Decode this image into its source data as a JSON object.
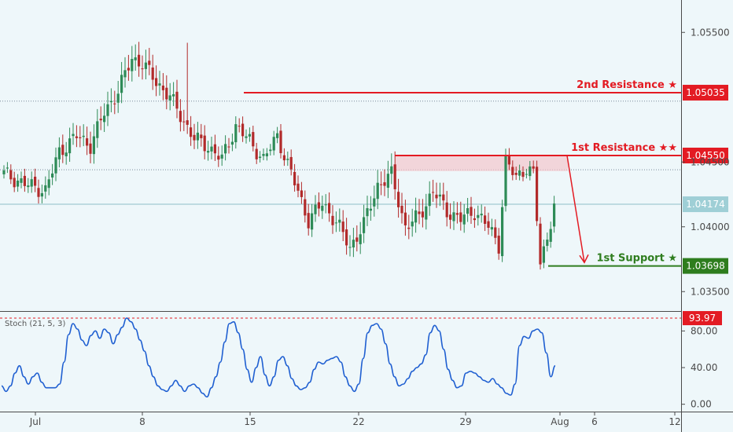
{
  "colors": {
    "background": "#eef7fa",
    "up_candle": "#2e8b57",
    "down_candle": "#b22a2a",
    "resistance": "#e31b23",
    "support": "#2e7d1e",
    "zone_fill": "#f3c6cc",
    "stoch_line": "#1f5fd1",
    "current_tag": "#9fcfd6",
    "axis_text": "#4a4a4a"
  },
  "chart_data": [
    {
      "type": "candlestick",
      "title": "",
      "y_axis_side": "right",
      "ylim": [
        1.0335,
        1.0575
      ],
      "y_ticks": [
        "1.05500",
        "1.04500",
        "1.04000",
        "1.03500"
      ],
      "x_ticks": [
        "Jul",
        "8",
        "15",
        "22",
        "29",
        "Aug",
        "6",
        "12"
      ],
      "price_anchors": [
        [
          0,
          1.0441
        ],
        [
          6,
          1.0433
        ],
        [
          12,
          1.0428
        ],
        [
          16,
          1.0458
        ],
        [
          21,
          1.047
        ],
        [
          25,
          1.0463
        ],
        [
          29,
          1.0488
        ],
        [
          33,
          1.0505
        ],
        [
          37,
          1.053
        ],
        [
          40,
          1.0526
        ],
        [
          44,
          1.0512
        ],
        [
          48,
          1.05
        ],
        [
          51,
          1.0486
        ],
        [
          55,
          1.0468
        ],
        [
          59,
          1.0462
        ],
        [
          63,
          1.0452
        ],
        [
          67,
          1.0478
        ],
        [
          71,
          1.0466
        ],
        [
          75,
          1.0452
        ],
        [
          79,
          1.047
        ],
        [
          84,
          1.0434
        ],
        [
          88,
          1.0405
        ],
        [
          92,
          1.0418
        ],
        [
          96,
          1.0404
        ],
        [
          100,
          1.0384
        ],
        [
          104,
          1.0402
        ],
        [
          108,
          1.0432
        ],
        [
          112,
          1.044
        ],
        [
          116,
          1.04
        ],
        [
          120,
          1.0408
        ],
        [
          124,
          1.0428
        ],
        [
          128,
          1.0412
        ],
        [
          132,
          1.0406
        ],
        [
          136,
          1.0412
        ],
        [
          140,
          1.04
        ],
        [
          143,
          1.0386
        ],
        [
          145,
          1.045
        ],
        [
          148,
          1.0438
        ],
        [
          151,
          1.0446
        ],
        [
          153,
          1.044
        ],
        [
          155,
          1.0372
        ],
        [
          157,
          1.0392
        ],
        [
          159,
          1.0417
        ]
      ],
      "levels": [
        {
          "label": "2nd Resistance ★",
          "value": 1.05035,
          "tag": "1.05035",
          "color": "#e31b23"
        },
        {
          "label": "1st Resistance ★★",
          "value": 1.0455,
          "tag": "1.04550",
          "color": "#e31b23"
        },
        {
          "label": "1st Support ★",
          "value": 1.03698,
          "tag": "1.03698",
          "color": "#2e7d1e"
        }
      ],
      "current_price": {
        "value": 1.04174,
        "tag": "1.04174"
      },
      "dotted_levels": [
        1.0497,
        1.0444
      ],
      "resistance_zone": [
        1.0443,
        1.0455
      ],
      "projection": {
        "from": 1.0455,
        "to": 1.037
      }
    },
    {
      "type": "line",
      "indicator": "Stoch (21, 5, 3)",
      "ylim": [
        -8,
        100
      ],
      "y_ticks": [
        "80.00",
        "40.00",
        "0.00"
      ],
      "threshold": {
        "value": 93.97,
        "tag": "93.97"
      },
      "values": [
        20,
        14,
        20,
        34,
        42,
        30,
        22,
        30,
        34,
        24,
        18,
        18,
        18,
        22,
        46,
        76,
        88,
        82,
        70,
        64,
        75,
        80,
        72,
        82,
        78,
        66,
        76,
        84,
        94,
        90,
        82,
        70,
        58,
        42,
        30,
        20,
        16,
        14,
        20,
        26,
        20,
        14,
        20,
        22,
        18,
        12,
        8,
        18,
        30,
        46,
        68,
        88,
        90,
        78,
        60,
        38,
        24,
        40,
        52,
        32,
        20,
        30,
        48,
        52,
        42,
        28,
        20,
        16,
        18,
        24,
        38,
        46,
        44,
        48,
        50,
        52,
        46,
        30,
        20,
        14,
        22,
        50,
        78,
        86,
        88,
        82,
        66,
        44,
        30,
        20,
        22,
        28,
        36,
        40,
        44,
        54,
        78,
        86,
        80,
        60,
        38,
        26,
        18,
        20,
        34,
        36,
        34,
        30,
        26,
        24,
        28,
        22,
        18,
        12,
        10,
        22,
        64,
        74,
        72,
        80,
        82,
        78,
        56,
        30,
        42
      ]
    }
  ]
}
